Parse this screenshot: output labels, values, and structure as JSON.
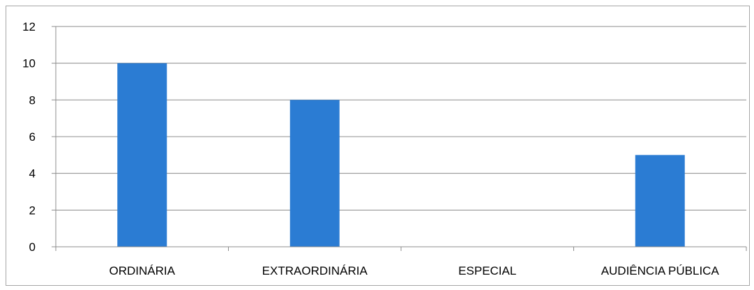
{
  "chart_data": {
    "type": "bar",
    "categories": [
      "ORDINÁRIA",
      "EXTRAORDINÁRIA",
      "ESPECIAL",
      "AUDIÊNCIA PÚBLICA"
    ],
    "values": [
      10,
      8,
      0,
      5
    ],
    "title": "",
    "xlabel": "",
    "ylabel": "",
    "ylim": [
      0,
      12
    ],
    "yticks": [
      0,
      2,
      4,
      6,
      8,
      10,
      12
    ],
    "grid": true,
    "legend": "none",
    "colors": {
      "bar": "#2b7cd3",
      "grid": "#8c8c8c",
      "axis": "#8c8c8c"
    }
  }
}
